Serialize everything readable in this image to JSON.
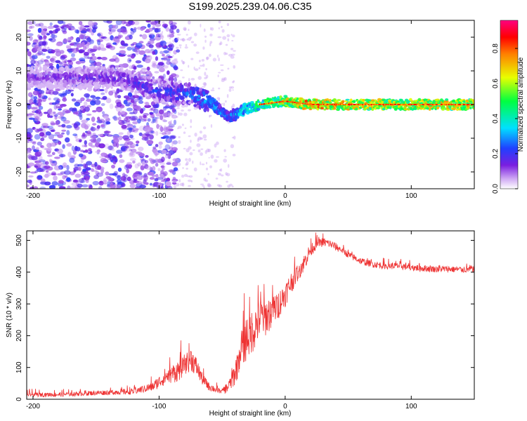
{
  "figure": {
    "title": "S199.2025.239.04.06.C35"
  },
  "chart_data": [
    {
      "type": "heatmap",
      "name": "spectrogram",
      "xlabel": "Height of straight line (km)",
      "ylabel": "Frequency (Hz)",
      "xlim": [
        -205,
        150
      ],
      "ylim": [
        -25,
        25
      ],
      "xticks": [
        -200,
        -100,
        0,
        100
      ],
      "yticks": [
        20,
        10,
        0,
        -10,
        -20
      ],
      "colorbar": {
        "label": "Normalized spectral amplitude",
        "range": [
          0,
          0.96
        ],
        "ticks": [
          0.0,
          0.2,
          0.4,
          0.6,
          0.8
        ],
        "colors": [
          "#ffffff",
          "#cfa8f4",
          "#7a1fe0",
          "#2040ff",
          "#00e0ff",
          "#00ff40",
          "#e8ff00",
          "#ff8000",
          "#ff0000",
          "#ff0080"
        ]
      },
      "description_points": {
        "centerline_x": [
          -205,
          -130,
          -100,
          -75,
          -60,
          -45,
          -35,
          -20,
          0,
          20,
          60,
          100,
          150
        ],
        "centerline_y": [
          8,
          8,
          4,
          3,
          1,
          -4,
          -2,
          0,
          1,
          0,
          0,
          0,
          0
        ],
        "amplitude": [
          0.15,
          0.2,
          0.25,
          0.3,
          0.35,
          0.3,
          0.4,
          0.55,
          0.7,
          0.85,
          0.75,
          0.75,
          0.75
        ]
      }
    },
    {
      "type": "line",
      "name": "snr",
      "xlabel": "Height of straight line (km)",
      "ylabel": "SNR (10 * v/v)",
      "xlim": [
        -205,
        150
      ],
      "ylim": [
        0,
        530
      ],
      "xticks": [
        -200,
        -100,
        0,
        100
      ],
      "yticks": [
        0,
        100,
        200,
        300,
        400,
        500
      ],
      "color": "#ee3333",
      "series": [
        {
          "name": "SNR",
          "x": [
            -205,
            -180,
            -150,
            -120,
            -105,
            -95,
            -85,
            -75,
            -70,
            -65,
            -60,
            -55,
            -50,
            -45,
            -40,
            -35,
            -30,
            -25,
            -20,
            -15,
            -10,
            -5,
            0,
            5,
            10,
            15,
            20,
            25,
            30,
            35,
            40,
            45,
            50,
            60,
            70,
            80,
            90,
            100,
            110,
            120,
            130,
            140,
            150
          ],
          "y": [
            15,
            15,
            20,
            25,
            40,
            70,
            90,
            130,
            100,
            60,
            40,
            30,
            25,
            40,
            80,
            160,
            200,
            220,
            260,
            260,
            280,
            300,
            330,
            370,
            400,
            430,
            470,
            490,
            495,
            490,
            480,
            470,
            455,
            435,
            425,
            420,
            420,
            415,
            412,
            410,
            410,
            408,
            410
          ],
          "amplitude": [
            15,
            15,
            15,
            20,
            30,
            50,
            70,
            80,
            60,
            40,
            30,
            20,
            20,
            40,
            80,
            130,
            150,
            140,
            140,
            120,
            110,
            90,
            80,
            70,
            60,
            55,
            45,
            35,
            30,
            28,
            26,
            24,
            22,
            22,
            22,
            22,
            22,
            22,
            22,
            22,
            22,
            22,
            22
          ]
        }
      ]
    }
  ]
}
